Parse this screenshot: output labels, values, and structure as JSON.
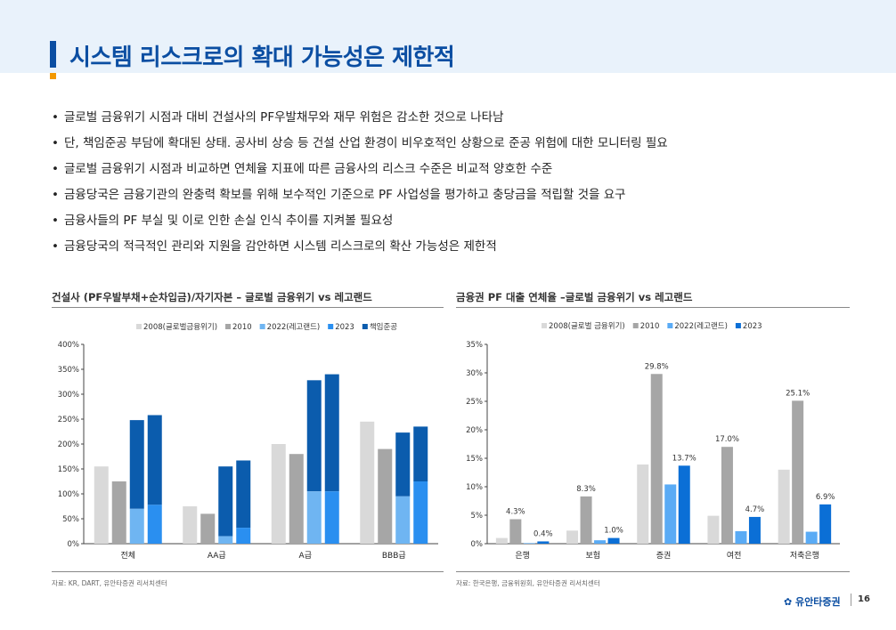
{
  "title": "시스템 리스크로의 확대 가능성은 제한적",
  "bullets": [
    "글로벌 금융위기 시점과 대비 건설사의 PF우발채무와 재무 위험은 감소한 것으로 나타남",
    "단, 책임준공 부담에 확대된 상태. 공사비 상승 등 건설 산업 환경이 비우호적인 상황으로 준공 위험에 대한 모니터링 필요",
    "글로벌 금융위기 시점과 비교하면 연체율 지표에 따른 금융사의 리스크 수준은 비교적 양호한 수준",
    "금융당국은 금융기관의 완충력 확보를 위해 보수적인 기준으로 PF 사업성을 평가하고 충당금을 적립할 것을 요구",
    "금융사들의 PF 부실 및 이로 인한 손실 인식 추이를 지켜볼 필요성",
    "금융당국의 적극적인 관리와 지원을 감안하면 시스템 리스크로의 확산 가능성은 제한적"
  ],
  "bullet_marker": "•",
  "chart1_title": "건설사 (PF우발부채+순차입금)/자기자본 – 글로벌 금융위기 vs 레고랜드",
  "chart2_title": "금융권 PF 대출 연체율 –글로벌 금융위기 vs 레고랜드",
  "source1": "자료: KR, DART, 유안타증권 리서치센터",
  "source2": "자료: 한국은행, 금융위원회, 유안타증권 리서치센터",
  "footer_logo": "유안타증권",
  "page_number": "16",
  "chart_data": [
    {
      "type": "bar",
      "categories": [
        "전체",
        "AA급",
        "A급",
        "BBB급"
      ],
      "series": [
        {
          "name": "2008(글로벌금융위기)",
          "values": [
            155,
            75,
            200,
            245
          ],
          "color": "#d9d9d9"
        },
        {
          "name": "2010",
          "values": [
            125,
            60,
            180,
            190
          ],
          "color": "#a6a6a6"
        },
        {
          "name": "2022(레고랜드)",
          "values": [
            70,
            15,
            105,
            95
          ],
          "color": "#6fb5f2"
        },
        {
          "name": "2023",
          "values": [
            78,
            32,
            105,
            125
          ],
          "color": "#2a8ff0"
        }
      ],
      "stacked_series": {
        "name": "책임준공",
        "color": "#0b5cad",
        "on": [
          "2022(레고랜드)",
          "2023"
        ],
        "totals": {
          "2022(레고랜드)": [
            248,
            155,
            328,
            223
          ],
          "2023": [
            258,
            167,
            340,
            235
          ]
        }
      },
      "ylim": [
        0,
        400
      ],
      "yticks": [
        0,
        50,
        100,
        150,
        200,
        250,
        300,
        350,
        400
      ],
      "ytick_labels": [
        "0%",
        "50%",
        "100%",
        "150%",
        "200%",
        "250%",
        "300%",
        "350%",
        "400%"
      ],
      "legend_position": "top"
    },
    {
      "type": "bar",
      "categories": [
        "은행",
        "보험",
        "증권",
        "여전",
        "저축은행"
      ],
      "series": [
        {
          "name": "2008(글로벌 금융위기)",
          "values": [
            1.0,
            2.3,
            13.9,
            4.9,
            13.0
          ],
          "color": "#d9d9d9"
        },
        {
          "name": "2010",
          "values": [
            4.3,
            8.3,
            29.8,
            17.0,
            25.1
          ],
          "color": "#a6a6a6"
        },
        {
          "name": "2022(레고랜드)",
          "values": [
            0.1,
            0.6,
            10.4,
            2.2,
            2.1
          ],
          "color": "#5aabf5"
        },
        {
          "name": "2023",
          "values": [
            0.4,
            1.0,
            13.7,
            4.7,
            6.9
          ],
          "color": "#0b6fd6"
        }
      ],
      "data_labels": [
        {
          "series": "2010",
          "category": "은행",
          "text": "4.3%"
        },
        {
          "series": "2023",
          "category": "은행",
          "text": "0.4%"
        },
        {
          "series": "2010",
          "category": "보험",
          "text": "8.3%"
        },
        {
          "series": "2023",
          "category": "보험",
          "text": "1.0%"
        },
        {
          "series": "2010",
          "category": "증권",
          "text": "29.8%"
        },
        {
          "series": "2023",
          "category": "증권",
          "text": "13.7%"
        },
        {
          "series": "2010",
          "category": "여전",
          "text": "17.0%"
        },
        {
          "series": "2023",
          "category": "여전",
          "text": "4.7%"
        },
        {
          "series": "2010",
          "category": "저축은행",
          "text": "25.1%"
        },
        {
          "series": "2023",
          "category": "저축은행",
          "text": "6.9%"
        }
      ],
      "ylim": [
        0,
        35
      ],
      "yticks": [
        0,
        5,
        10,
        15,
        20,
        25,
        30,
        35
      ],
      "ytick_labels": [
        "0%",
        "5%",
        "10%",
        "15%",
        "20%",
        "25%",
        "30%",
        "35%"
      ],
      "legend_position": "top"
    }
  ]
}
